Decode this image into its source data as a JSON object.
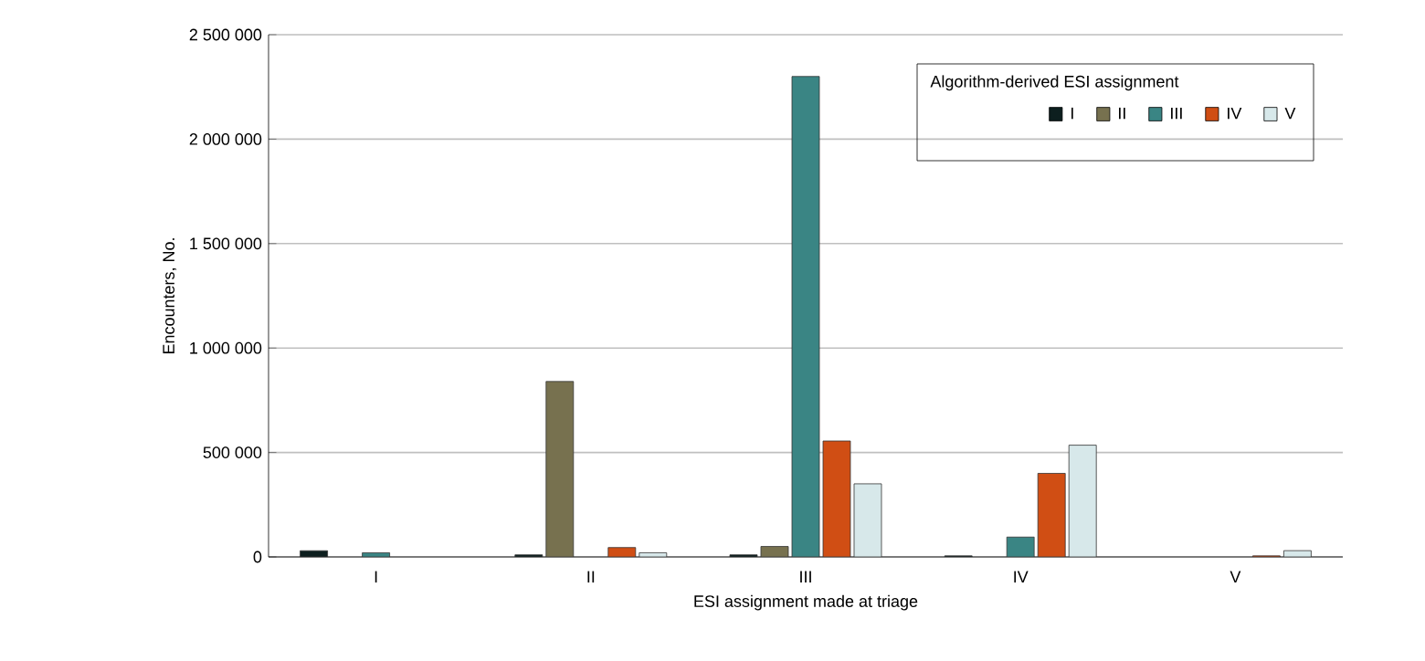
{
  "chart_data": {
    "type": "bar",
    "xlabel": "ESI assignment made at triage",
    "ylabel": "Encounters, No.",
    "legend_title": "Algorithm-derived ESI assignment",
    "categories": [
      "I",
      "II",
      "III",
      "IV",
      "V"
    ],
    "series": [
      {
        "name": "I",
        "color": "#0d1f1f",
        "values": [
          30000,
          10000,
          10000,
          5000,
          null
        ]
      },
      {
        "name": "II",
        "color": "#77714f",
        "values": [
          null,
          840000,
          50000,
          null,
          null
        ]
      },
      {
        "name": "III",
        "color": "#3a8584",
        "values": [
          20000,
          null,
          2300000,
          95000,
          null
        ]
      },
      {
        "name": "IV",
        "color": "#d04e14",
        "values": [
          null,
          45000,
          555000,
          400000,
          5000
        ]
      },
      {
        "name": "V",
        "color": "#d7e8ea",
        "values": [
          null,
          20000,
          350000,
          535000,
          30000
        ]
      }
    ],
    "ylim": [
      0,
      2500000
    ],
    "yticks": [
      {
        "value": 0,
        "label": "0"
      },
      {
        "value": 500000,
        "label": "500 000"
      },
      {
        "value": 1000000,
        "label": "1 000 000"
      },
      {
        "value": 1500000,
        "label": "1 500 000"
      },
      {
        "value": 2000000,
        "label": "2 000 000"
      },
      {
        "value": 2500000,
        "label": "2 500 000"
      }
    ],
    "grid": "y",
    "legend": "top right"
  }
}
